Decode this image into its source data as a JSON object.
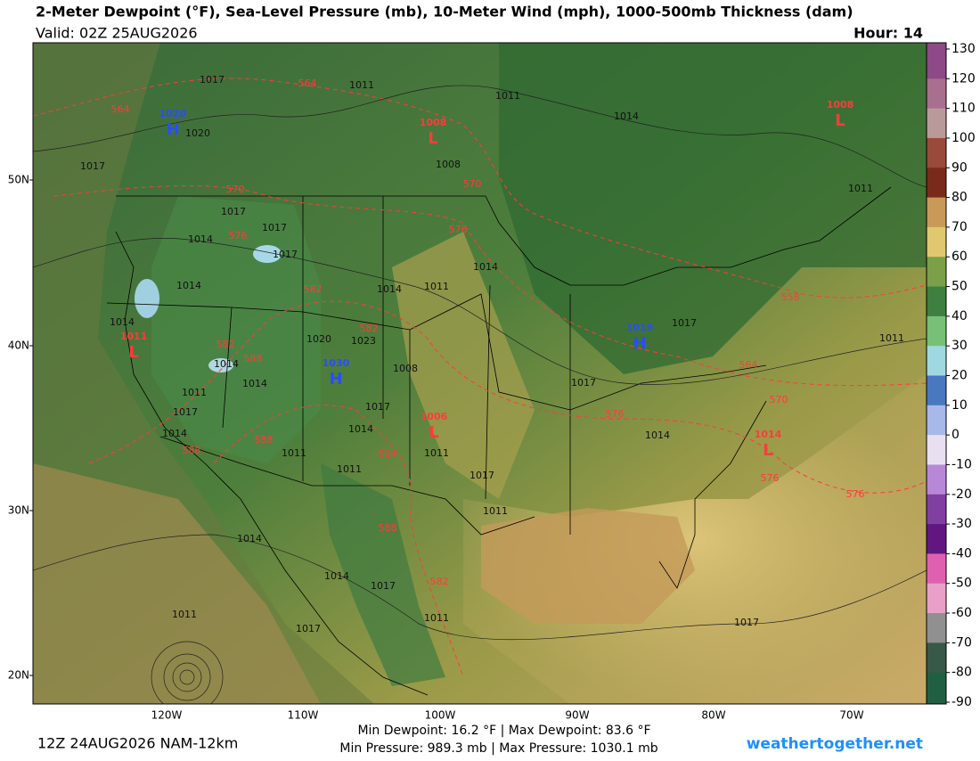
{
  "header": {
    "title": "2-Meter Dewpoint (°F), Sea-Level Pressure (mb), 10-Meter Wind (mph), 1000-500mb Thickness (dam)",
    "valid": "Valid: 02Z 25AUG2026",
    "hour": "Hour: 14"
  },
  "map": {
    "latitude_labels": [
      "50N",
      "40N",
      "30N",
      "20N"
    ],
    "longitude_labels": [
      "120W",
      "110W",
      "100W",
      "90W",
      "80W",
      "70W"
    ],
    "pressure_centers": [
      {
        "symbol": "H",
        "value": "1020",
        "color": "#2a4cff"
      },
      {
        "symbol": "L",
        "value": "1008",
        "color": "#ff3b3b"
      },
      {
        "symbol": "H",
        "value": "1030",
        "color": "#2a4cff"
      },
      {
        "symbol": "L",
        "value": "1011",
        "color": "#ff3b3b"
      },
      {
        "symbol": "L",
        "value": "1006",
        "color": "#ff3b3b"
      },
      {
        "symbol": "H",
        "value": "1019",
        "color": "#2a4cff"
      },
      {
        "symbol": "L",
        "value": "1014",
        "color": "#ff3b3b"
      },
      {
        "symbol": "L",
        "value": "1008",
        "color": "#ff3b3b"
      }
    ],
    "isobar_labels": [
      "1017",
      "1011",
      "1011",
      "1014",
      "1020",
      "1017",
      "1017",
      "1014",
      "1017",
      "1017",
      "1014",
      "1014",
      "1011",
      "1014",
      "1020",
      "1023",
      "1014",
      "1014",
      "1011",
      "1017",
      "1014",
      "1011",
      "1014",
      "1011",
      "1017",
      "1008",
      "1011",
      "1017",
      "1017",
      "1017",
      "1014",
      "1011",
      "1014",
      "1014",
      "1017",
      "1011",
      "1011",
      "1017",
      "1017",
      "1011",
      "1011",
      "1008",
      "1014"
    ],
    "thickness_labels": [
      "564",
      "564",
      "570",
      "570",
      "576",
      "576",
      "582",
      "582",
      "582",
      "588",
      "588",
      "588",
      "594",
      "588",
      "582",
      "576",
      "564",
      "570",
      "558",
      "576",
      "576"
    ]
  },
  "colorbar": {
    "ticks": [
      130,
      120,
      110,
      100,
      90,
      80,
      70,
      60,
      50,
      40,
      30,
      20,
      10,
      0,
      -10,
      -20,
      -30,
      -40,
      -50,
      -60,
      -70,
      -80,
      -90
    ],
    "colors": [
      "#8c4a86",
      "#a7708f",
      "#b99a9a",
      "#9a4a3a",
      "#7a2a1a",
      "#c89a5a",
      "#e0c870",
      "#7aa04a",
      "#3f7f3f",
      "#78c078",
      "#a0d8e0",
      "#4a78c0",
      "#a8b8e8",
      "#e8e0f0",
      "#b888d8",
      "#8040a0",
      "#601880",
      "#e060b0",
      "#e8a0c8",
      "#909090",
      "#385848",
      "#206040"
    ]
  },
  "footer": {
    "run": "12Z 24AUG2026 NAM-12km",
    "line1": "Min Dewpoint:  16.2 °F | Max Dewpoint:  83.6 °F",
    "line2": "Min Pressure: 989.3 mb | Max Pressure: 1030.1 mb",
    "site": "weathertogether.net"
  }
}
